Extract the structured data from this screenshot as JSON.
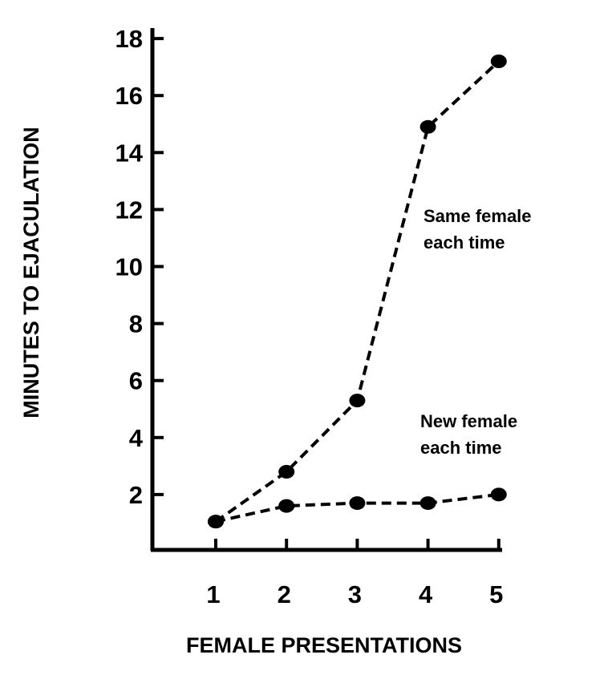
{
  "chart_data": {
    "type": "line",
    "title": "",
    "xlabel": "FEMALE PRESENTATIONS",
    "ylabel": "MINUTES TO EJACULATION",
    "x": [
      1,
      2,
      3,
      4,
      5
    ],
    "xticks": [
      "1",
      "2",
      "3",
      "4",
      "5"
    ],
    "yticks": [
      "2",
      "4",
      "6",
      "8",
      "10",
      "12",
      "14",
      "16",
      "18"
    ],
    "ylim": [
      0,
      18
    ],
    "grid": false,
    "series": [
      {
        "name": "Same female each time",
        "label_lines": [
          "Same female",
          "each time"
        ],
        "values": [
          1.05,
          2.8,
          5.3,
          14.9,
          17.2
        ]
      },
      {
        "name": "New female each time",
        "label_lines": [
          "New female",
          "each time"
        ],
        "values": [
          1.05,
          1.6,
          1.7,
          1.7,
          2.0
        ]
      }
    ]
  }
}
